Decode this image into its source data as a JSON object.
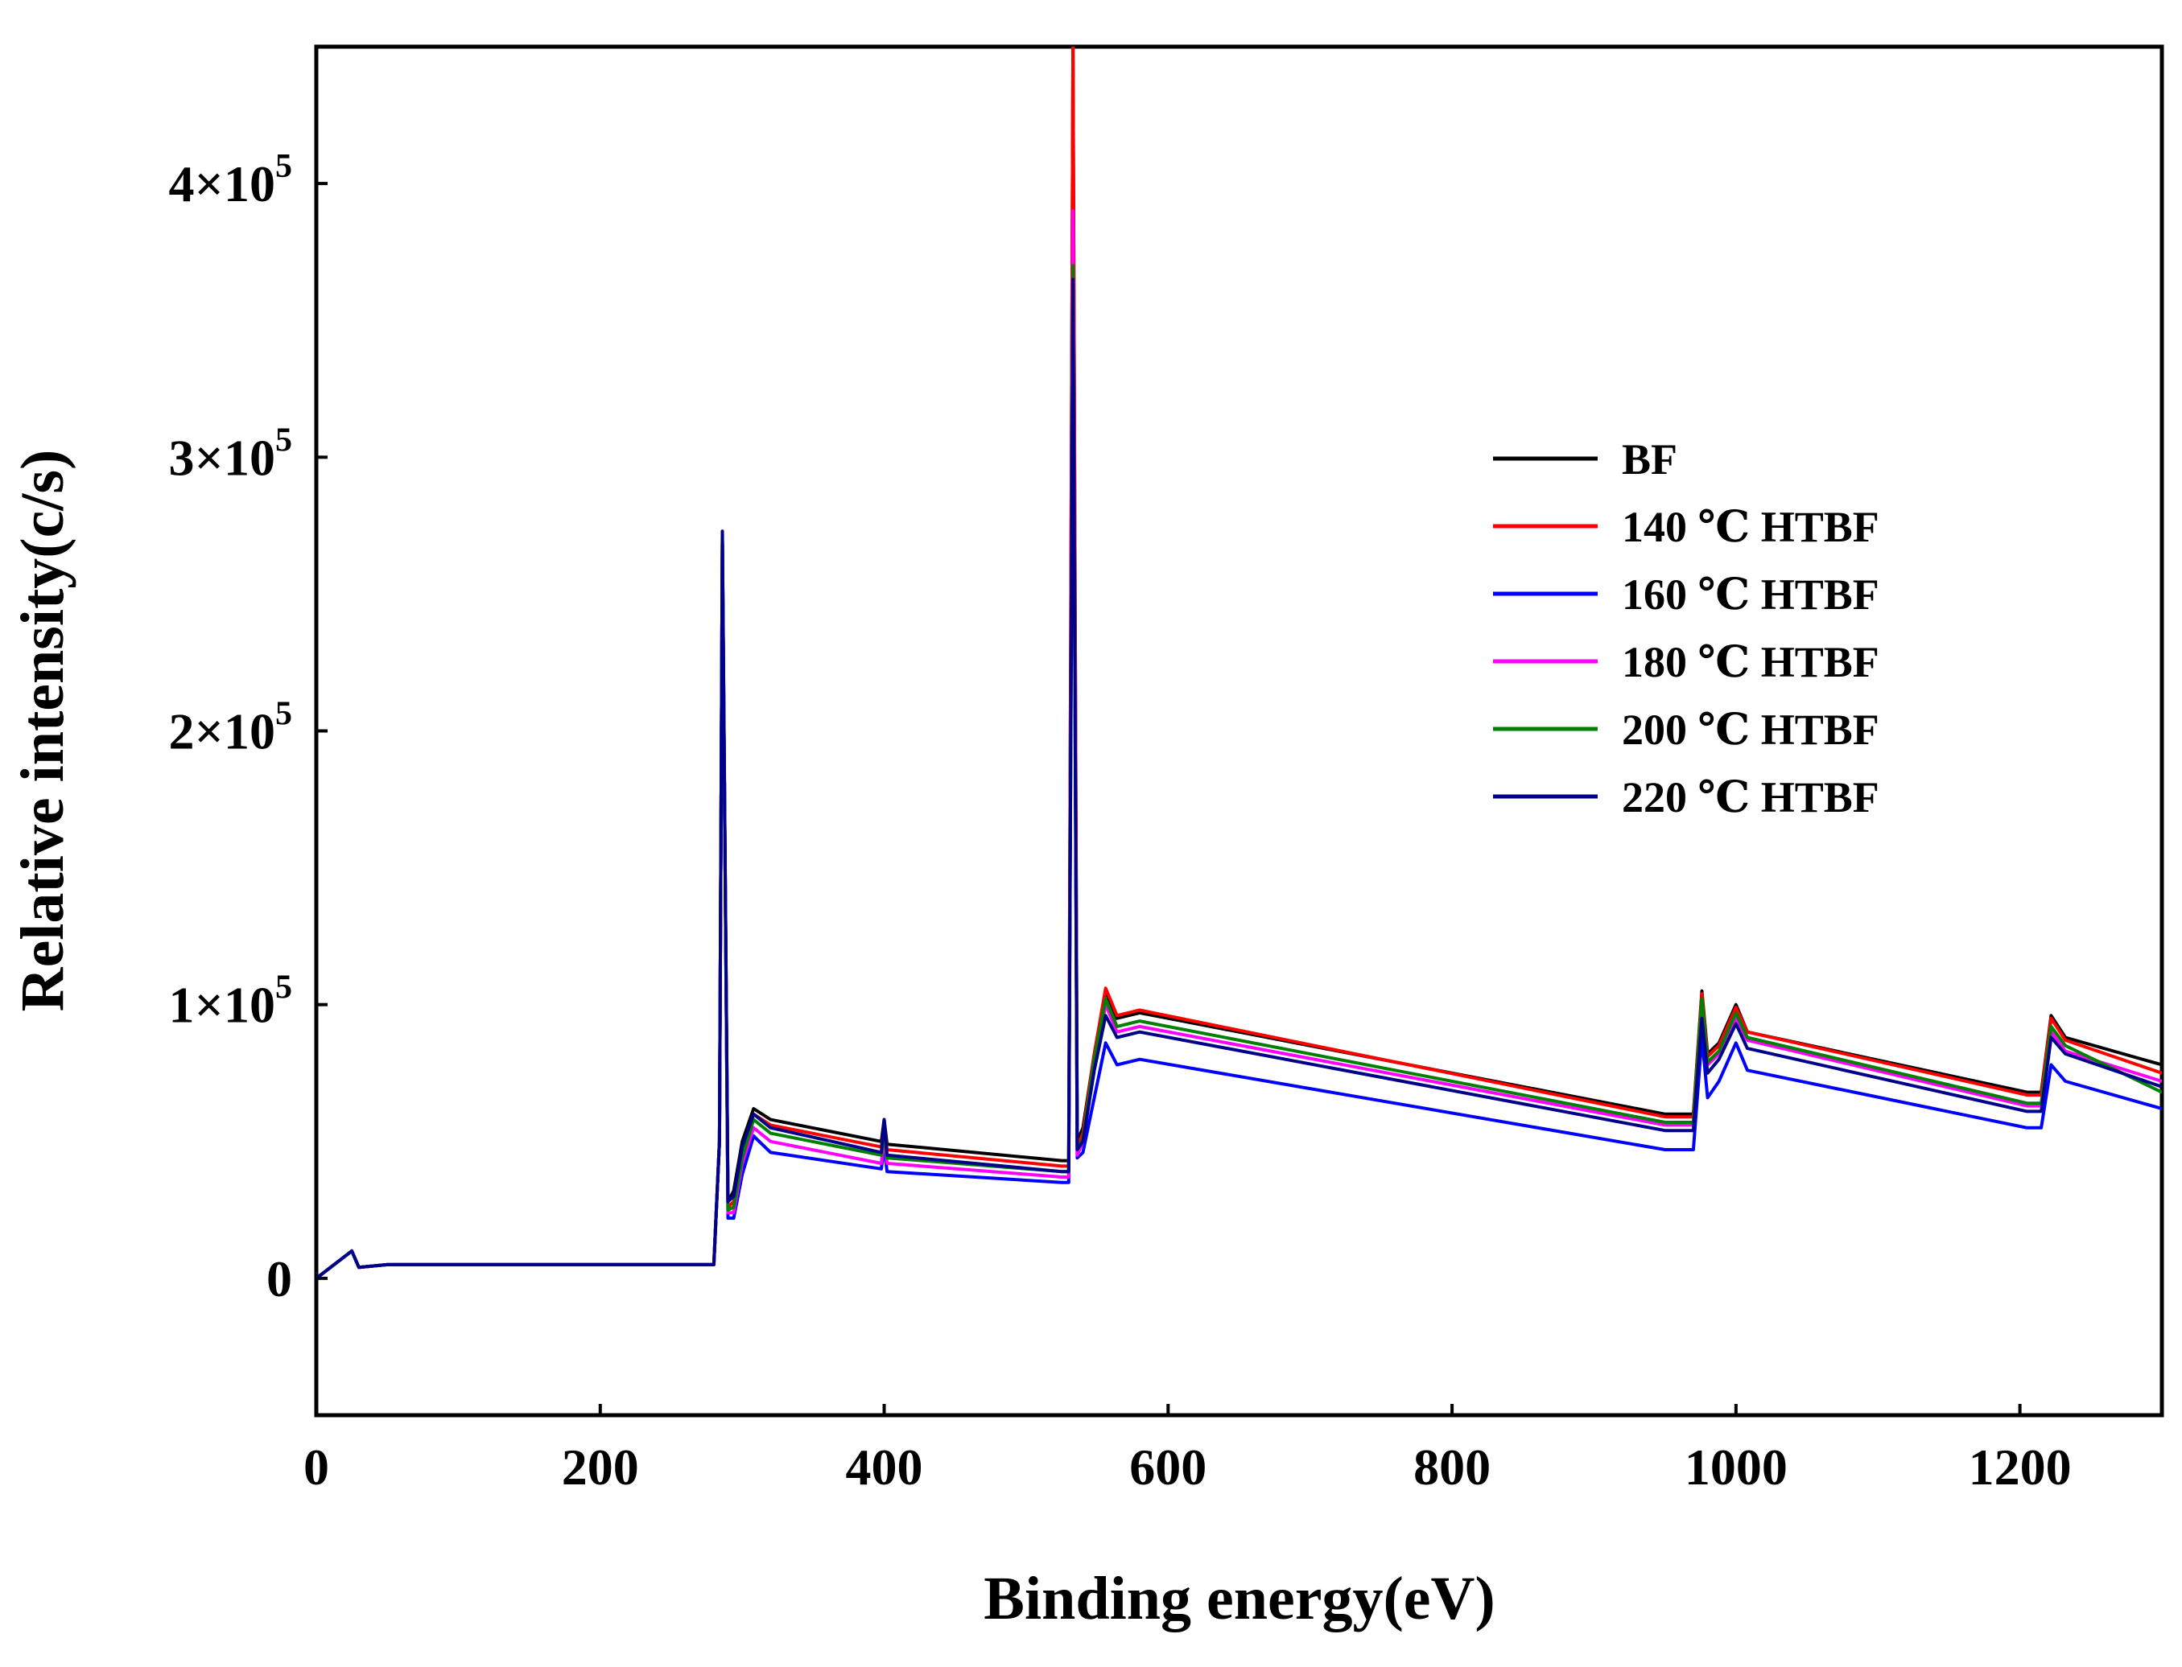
{
  "chart_data": {
    "type": "line",
    "title": "",
    "xlabel": "Binding energy(eV)",
    "ylabel": "Relative intensity(c/s)",
    "xlim": [
      0,
      1300
    ],
    "ylim": [
      -50000,
      450000
    ],
    "xticks": [
      0,
      200,
      400,
      600,
      800,
      1000,
      1200
    ],
    "xtick_labels": [
      "0",
      "200",
      "400",
      "600",
      "800",
      "1000",
      "1200"
    ],
    "yticks": [
      0,
      100000,
      200000,
      300000,
      400000
    ],
    "ytick_labels": [
      {
        "mant": "0",
        "exp": ""
      },
      {
        "mant": "1×10",
        "exp": "5"
      },
      {
        "mant": "2×10",
        "exp": "5"
      },
      {
        "mant": "3×10",
        "exp": "5"
      },
      {
        "mant": "4×10",
        "exp": "5"
      }
    ],
    "grid": false,
    "legend_position": "upper-right",
    "x": [
      0,
      25,
      30,
      50,
      270,
      280,
      284,
      286,
      290,
      294,
      300,
      308,
      320,
      398,
      400,
      402,
      525,
      530,
      533,
      536,
      540,
      548,
      556,
      564,
      580,
      950,
      970,
      976,
      980,
      988,
      1000,
      1008,
      1205,
      1215,
      1222,
      1232,
      1300
    ],
    "series": [
      {
        "name": "BF",
        "color": "#000000",
        "values": [
          0,
          10000,
          4000,
          5000,
          5000,
          5000,
          50000,
          270000,
          28000,
          32000,
          50000,
          62000,
          58000,
          50000,
          58000,
          49000,
          43000,
          43000,
          450000,
          50000,
          55000,
          82000,
          105000,
          95000,
          97000,
          60000,
          60000,
          105000,
          82000,
          86000,
          100000,
          90000,
          68000,
          68000,
          96000,
          88000,
          78000
        ]
      },
      {
        "name": "140 ℃ HTBF",
        "color": "#ff0000",
        "values": [
          0,
          10000,
          4000,
          5000,
          5000,
          5000,
          50000,
          270000,
          26000,
          28000,
          46000,
          60000,
          56000,
          48000,
          56000,
          47000,
          41000,
          41000,
          450000,
          48000,
          53000,
          82000,
          106000,
          96000,
          98000,
          59000,
          59000,
          104000,
          81000,
          85000,
          99000,
          90000,
          67000,
          67000,
          95000,
          87000,
          75000
        ]
      },
      {
        "name": "160 ℃ HTBF",
        "color": "#0000ff",
        "values": [
          0,
          10000,
          4000,
          5000,
          5000,
          5000,
          50000,
          270000,
          22000,
          22000,
          38000,
          52000,
          46000,
          40000,
          48000,
          39000,
          35000,
          35000,
          360000,
          44000,
          46000,
          66000,
          86000,
          78000,
          80000,
          47000,
          47000,
          88000,
          66000,
          72000,
          86000,
          76000,
          55000,
          55000,
          78000,
          72000,
          62000
        ]
      },
      {
        "name": "180 ℃ HTBF",
        "color": "#ff00ff",
        "values": [
          0,
          10000,
          4000,
          5000,
          5000,
          5000,
          50000,
          270000,
          24000,
          24000,
          42000,
          55000,
          50000,
          42000,
          52000,
          42000,
          37000,
          37000,
          390000,
          45000,
          50000,
          78000,
          100000,
          90000,
          92000,
          56000,
          56000,
          100000,
          78000,
          82000,
          95000,
          87000,
          63000,
          63000,
          90000,
          83000,
          72000
        ]
      },
      {
        "name": "200 ℃ HTBF",
        "color": "#008000",
        "values": [
          0,
          10000,
          4000,
          5000,
          5000,
          5000,
          50000,
          270000,
          25000,
          26000,
          44000,
          58000,
          53000,
          45000,
          54000,
          44000,
          39000,
          39000,
          370000,
          47000,
          51000,
          80000,
          102000,
          92000,
          94000,
          57000,
          57000,
          102000,
          79000,
          83000,
          97000,
          88000,
          64000,
          64000,
          92000,
          85000,
          68000
        ]
      },
      {
        "name": "220 ℃ HTBF",
        "color": "#00008b",
        "values": [
          0,
          10000,
          4000,
          5000,
          5000,
          5000,
          50000,
          273000,
          28000,
          30000,
          48000,
          60000,
          55000,
          46000,
          58000,
          45000,
          39000,
          39000,
          365000,
          47000,
          50000,
          76000,
          96000,
          88000,
          90000,
          54000,
          54000,
          95000,
          75000,
          80000,
          93000,
          84000,
          61000,
          61000,
          88000,
          82000,
          70000
        ]
      }
    ]
  }
}
